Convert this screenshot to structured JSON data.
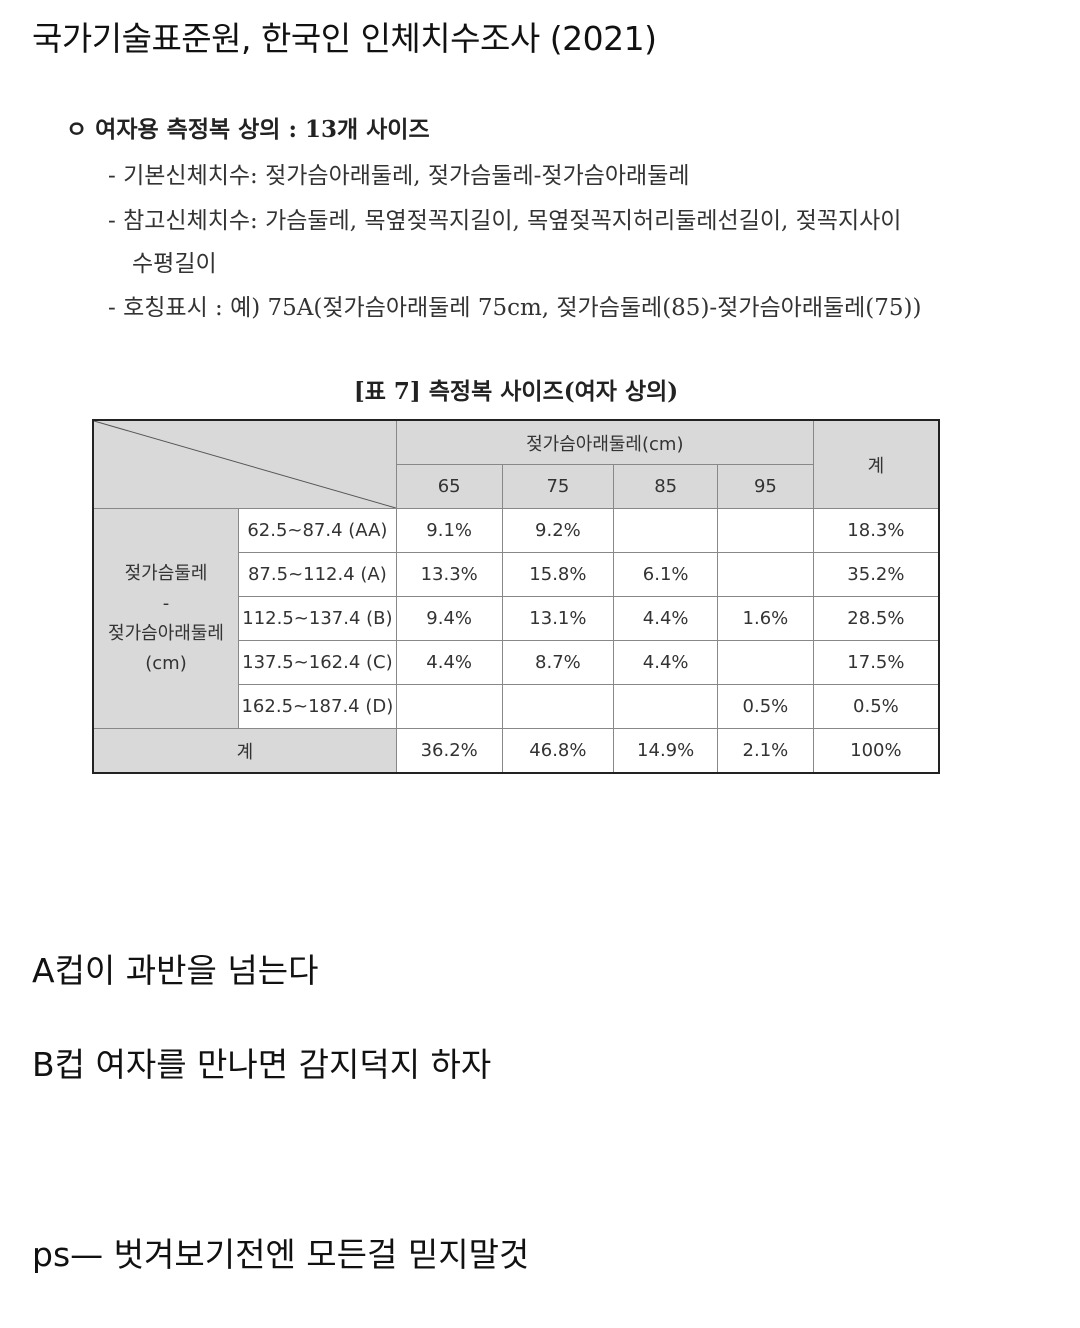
{
  "heading": "국가기술표준원, 한국인 인체치수조사 (2021)",
  "doc": {
    "main_bullet": "ㅇ 여자용 측정복 상의 : 13개 사이즈",
    "items": [
      "- 기본신체치수: 젖가슴아래둘레, 젖가슴둘레-젖가슴아래둘레",
      "- 참고신체치수: 가슴둘레, 목옆젖꼭지길이, 목옆젖꼭지허리둘레선길이, 젖꼭지사이",
      "수평길이",
      "- 호칭표시 : 예) 75A(젖가슴아래둘레 75cm, 젖가슴둘레(85)-젖가슴아래둘레(75))"
    ],
    "caption": "[표 7] 측정복 사이즈(여자 상의)"
  },
  "table": {
    "col_group_header": "젖가슴아래둘레(cm)",
    "columns": [
      "65",
      "75",
      "85",
      "95"
    ],
    "total_header": "계",
    "row_group_header": [
      "젖가슴둘레",
      "-",
      "젖가슴아래둘레",
      "(cm)"
    ],
    "rows": [
      {
        "label": "62.5~87.4 (AA)",
        "cells": [
          "9.1%",
          "9.2%",
          "",
          ""
        ],
        "total": "18.3%"
      },
      {
        "label": "87.5~112.4 (A)",
        "cells": [
          "13.3%",
          "15.8%",
          "6.1%",
          ""
        ],
        "total": "35.2%"
      },
      {
        "label": "112.5~137.4 (B)",
        "cells": [
          "9.4%",
          "13.1%",
          "4.4%",
          "1.6%"
        ],
        "total": "28.5%"
      },
      {
        "label": "137.5~162.4 (C)",
        "cells": [
          "4.4%",
          "8.7%",
          "4.4%",
          ""
        ],
        "total": "17.5%"
      },
      {
        "label": "162.5~187.4 (D)",
        "cells": [
          "",
          "",
          "",
          "0.5%"
        ],
        "total": "0.5%"
      }
    ],
    "footer_label": "계",
    "footer_cells": [
      "36.2%",
      "46.8%",
      "14.9%",
      "2.1%"
    ],
    "footer_total": "100%"
  },
  "tail": {
    "line1": "A컵이 과반을 넘는다",
    "line2": "B컵 여자를 만나면 감지덕지 하자",
    "line3": "ps— 벗겨보기전엔 모든걸 믿지말것"
  }
}
